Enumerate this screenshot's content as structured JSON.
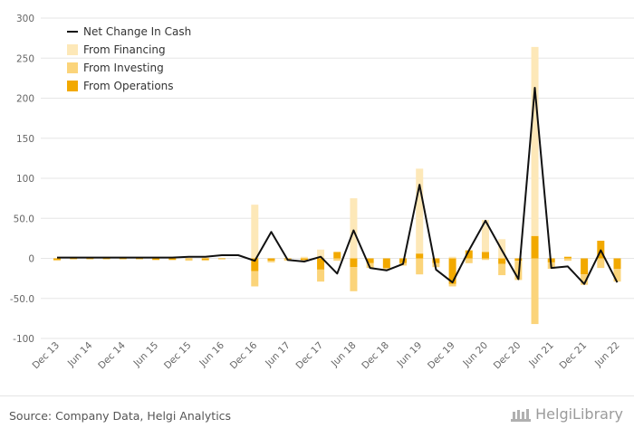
{
  "chart_data": {
    "type": "bar",
    "y_ticks": [
      "300",
      "250",
      "200",
      "150",
      "100",
      "50.0",
      "0",
      "-50.0",
      "-100"
    ],
    "ylim": [
      -100,
      300
    ],
    "x_tick_labels": [
      "Dec 13",
      "Jun 14",
      "Dec 14",
      "Jun 15",
      "Dec 15",
      "Jun 16",
      "Dec 16",
      "Jun 17",
      "Dec 17",
      "Jun 18",
      "Dec 18",
      "Jun 19",
      "Dec 19",
      "Jun 20",
      "Dec 20",
      "Jun 21",
      "Dec 21",
      "Jun 22"
    ],
    "categories": [
      "Dec 13",
      "Mar 14",
      "Jun 14",
      "Sep 14",
      "Dec 14",
      "Mar 15",
      "Jun 15",
      "Sep 15",
      "Dec 15",
      "Mar 16",
      "Jun 16",
      "Sep 16",
      "Dec 16",
      "Mar 17",
      "Jun 17",
      "Sep 17",
      "Dec 17",
      "Mar 18",
      "Jun 18",
      "Sep 18",
      "Dec 18",
      "Mar 19",
      "Jun 19",
      "Sep 19",
      "Dec 19",
      "Mar 20",
      "Jun 20",
      "Sep 20",
      "Dec 20",
      "Mar 21",
      "Jun 21",
      "Sep 21",
      "Dec 21",
      "Mar 22",
      "Jun 22"
    ],
    "series": [
      {
        "name": "From Operations",
        "color": "#f2a900",
        "values": [
          -2,
          -1,
          -1,
          -1,
          -1,
          -1,
          -2,
          -2,
          -1,
          -2,
          -1,
          0,
          -16,
          -3,
          -1,
          -2,
          -14,
          8,
          -11,
          -6,
          -12,
          -6,
          6,
          -6,
          -32,
          10,
          8,
          -7,
          -3,
          28,
          -5,
          2,
          -20,
          22,
          -13
        ]
      },
      {
        "name": "From Investing",
        "color": "#fbd47a",
        "values": [
          -1,
          0,
          0,
          0,
          0,
          0,
          0,
          0,
          -2,
          -1,
          0,
          0,
          -19,
          -2,
          -2,
          -1,
          -15,
          -3,
          -30,
          -6,
          -2,
          -3,
          -20,
          -5,
          -3,
          -6,
          -2,
          -14,
          -24,
          -82,
          -8,
          -3,
          -13,
          -12,
          -16
        ]
      },
      {
        "name": "From Financing",
        "color": "#fde8b8",
        "values": [
          0,
          0,
          0,
          0,
          0,
          0,
          0,
          0,
          0,
          2,
          0,
          0,
          67,
          0,
          0,
          2,
          11,
          0,
          75,
          0,
          0,
          0,
          106,
          0,
          2,
          0,
          40,
          24,
          0,
          236,
          0,
          0,
          0,
          0,
          0
        ]
      }
    ],
    "net_change": {
      "name": "Net Change In Cash",
      "color": "#111111",
      "values": [
        1,
        1,
        1,
        1,
        1,
        1,
        1,
        1,
        2,
        2,
        4,
        4,
        -3,
        33,
        -2,
        -4,
        2,
        -19,
        35,
        -12,
        -15,
        -7,
        92,
        -14,
        -30,
        10,
        47,
        10,
        -26,
        213,
        -12,
        -10,
        -32,
        10,
        -30
      ]
    },
    "legend": [
      "Net Change In Cash",
      "From Financing",
      "From Investing",
      "From Operations"
    ],
    "legend_position": "top-left",
    "grid": true
  },
  "footer": {
    "source": "Source: Company Data, Helgi Analytics",
    "brand": "HelgiLibrary"
  }
}
